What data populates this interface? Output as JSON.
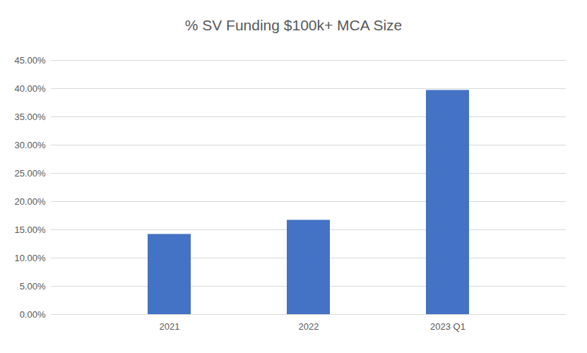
{
  "chart_data": {
    "type": "bar",
    "title": "% SV Funding $100k+ MCA Size",
    "categories": [
      "2021",
      "2022",
      "2023 Q1"
    ],
    "values": [
      14.2,
      16.7,
      39.7
    ],
    "color": "#4472c4",
    "ylim": [
      0,
      45
    ],
    "yticks": [
      {
        "value": 0,
        "label": "0.00%"
      },
      {
        "value": 5,
        "label": "5.00%"
      },
      {
        "value": 10,
        "label": "10.00%"
      },
      {
        "value": 15,
        "label": "15.00%"
      },
      {
        "value": 20,
        "label": "20.00%"
      },
      {
        "value": 25,
        "label": "25.00%"
      },
      {
        "value": 30,
        "label": "30.00%"
      },
      {
        "value": 35,
        "label": "35.00%"
      },
      {
        "value": 40,
        "label": "40.00%"
      },
      {
        "value": 45,
        "label": "45.00%"
      }
    ],
    "grid": true
  }
}
